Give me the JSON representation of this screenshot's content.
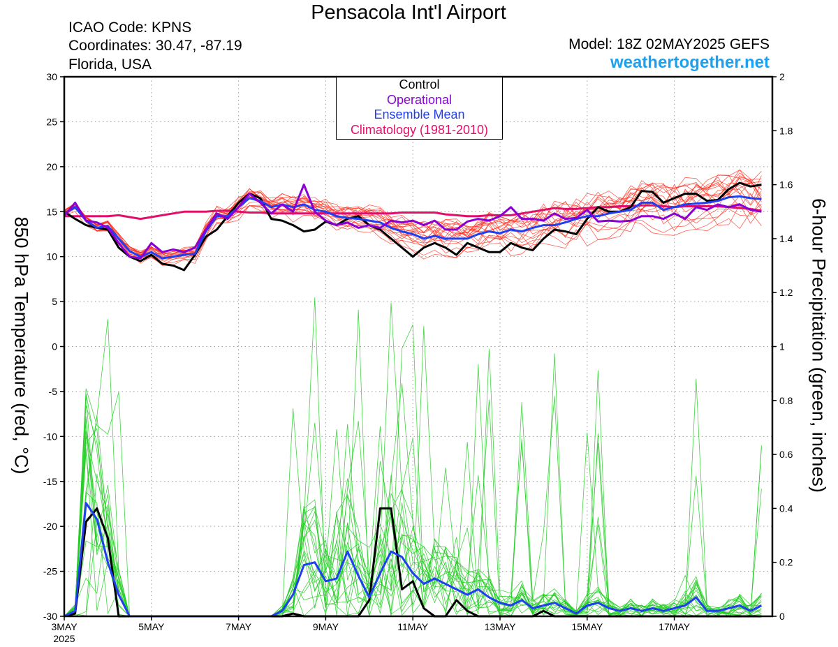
{
  "header": {
    "title": "Pensacola Int'l Airport",
    "icao": "ICAO Code: KPNS",
    "coordinates": "Coordinates: 30.47, -87.19",
    "region": "Florida, USA",
    "model": "Model: 18Z 02MAY2025 GEFS",
    "site": "weathertogether.net"
  },
  "legend": {
    "items": [
      {
        "label": "Control",
        "color": "#000000"
      },
      {
        "label": "Operational",
        "color": "#8a00d4"
      },
      {
        "label": "Ensemble Mean",
        "color": "#1f3ff0"
      },
      {
        "label": "Climatology (1981-2010)",
        "color": "#e0106a"
      }
    ]
  },
  "chart_data": {
    "type": "line",
    "title": "Pensacola Int'l Airport",
    "ylabel_left": "850 hPa Temperature (red, °C)",
    "ylabel_right": "6-hour Precipitation (green, inches)",
    "ylim_left": [
      -30,
      30
    ],
    "ylim_right": [
      0,
      2
    ],
    "yticks_left": [
      30,
      25,
      20,
      15,
      10,
      5,
      0,
      -5,
      -10,
      -15,
      -20,
      -25,
      -30
    ],
    "yticks_right": [
      "2",
      "1.8",
      "1.6",
      "1.4",
      "1.2",
      "1",
      "0.8",
      "0.6",
      "0.4",
      "0.2",
      "0"
    ],
    "x_start": "3MAY 2025 00Z",
    "x_interval_hours": 6,
    "x_range_hours": [
      0,
      390
    ],
    "xticks": [
      {
        "hours": 0,
        "label": "3MAY",
        "sublabel": "2025"
      },
      {
        "hours": 48,
        "label": "5MAY"
      },
      {
        "hours": 96,
        "label": "7MAY"
      },
      {
        "hours": 144,
        "label": "9MAY"
      },
      {
        "hours": 192,
        "label": "11MAY"
      },
      {
        "hours": 240,
        "label": "13MAY"
      },
      {
        "hours": 288,
        "label": "15MAY"
      },
      {
        "hours": 336,
        "label": "17MAY"
      }
    ],
    "grid": true,
    "legend_position": "top-center",
    "temperature_series": [
      {
        "name": "Control",
        "color": "#000000",
        "values": [
          15,
          14.2,
          13.5,
          13.2,
          13,
          11,
          10,
          9.5,
          10.2,
          9.2,
          9,
          8.5,
          10.2,
          12.2,
          13,
          14.5,
          16,
          17,
          16.5,
          14.2,
          14,
          13.5,
          12.8,
          13,
          13.9,
          13.5,
          14.2,
          14.5,
          13.5,
          13,
          12,
          11,
          10,
          11,
          11.5,
          11,
          10.2,
          11.5,
          11,
          10.5,
          10.5,
          11.5,
          11,
          10.7,
          12,
          13,
          12.8,
          12.5,
          14.2,
          15.5,
          15,
          15,
          15.5,
          17.3,
          17.2,
          16,
          16.5,
          17,
          17,
          16.2,
          16.3,
          17.5,
          18.2,
          17.8,
          18
        ]
      },
      {
        "name": "Operational",
        "color": "#8a00d4",
        "values": [
          14.5,
          16,
          14,
          13.8,
          13.2,
          11.5,
          10,
          9.8,
          11.5,
          10.5,
          10.8,
          10.5,
          11,
          13,
          14.8,
          14.2,
          15.5,
          17,
          16,
          14.8,
          15.8,
          15,
          18,
          15,
          14,
          13.5,
          13.8,
          13.2,
          13.5,
          13.2,
          14,
          13.8,
          14,
          13.5,
          14,
          13,
          13,
          13.9,
          14.2,
          14,
          14.5,
          15.5,
          14.2,
          14.2,
          14,
          14.8,
          14.2,
          14.3,
          15.2,
          13.9,
          14,
          13.9,
          14,
          14.5,
          14.5,
          14.2,
          14.8,
          14.2,
          15.5,
          15.2,
          15.8,
          15.5,
          15.8,
          15.2,
          15
        ]
      },
      {
        "name": "Ensemble Mean",
        "color": "#1f3ff0",
        "values": [
          14.8,
          15.5,
          14,
          13.2,
          13.4,
          12,
          10.6,
          10,
          10.5,
          9.8,
          10,
          10.2,
          10.3,
          12.8,
          14.5,
          14.5,
          15.5,
          16.5,
          16.2,
          15.5,
          15.8,
          15.5,
          15.8,
          15.2,
          15,
          14.5,
          14.3,
          14.2,
          14,
          13.8,
          13.2,
          12.8,
          12.5,
          12,
          12.3,
          12,
          12,
          12,
          12.5,
          12.8,
          12.6,
          13,
          12.8,
          13.2,
          13.5,
          13.5,
          13.8,
          14.2,
          14.5,
          14.5,
          14.8,
          15,
          15.2,
          16,
          16,
          15.2,
          15.5,
          15.8,
          15.9,
          16,
          16.2,
          16.6,
          16.7,
          16.5,
          16.4
        ]
      },
      {
        "name": "Climatology (1981-2010)",
        "color": "#e0106a",
        "values": [
          14.5,
          14.5,
          14.5,
          14.5,
          14.5,
          14.6,
          14.4,
          14.2,
          14.4,
          14.6,
          14.8,
          15,
          15,
          15,
          15.1,
          15.1,
          15,
          14.9,
          14.9,
          14.8,
          14.8,
          14.8,
          14.8,
          14.8,
          14.8,
          14.8,
          14.8,
          14.8,
          14.8,
          14.8,
          14.8,
          14.9,
          14.9,
          14.9,
          14.9,
          14.7,
          14.6,
          14.5,
          14.5,
          14.6,
          14.6,
          14.6,
          14.8,
          15,
          15.2,
          15.4,
          15.3,
          15.3,
          15.4,
          15.5,
          15.5,
          15.6,
          15.6,
          15.7,
          15.7,
          15.6,
          15.5,
          15.6,
          15.6,
          15.6,
          15.6,
          15.5,
          15.4,
          15.3,
          15.1
        ]
      }
    ],
    "precipitation_series": [
      {
        "name": "Control",
        "color": "#000000",
        "values": [
          0,
          0.01,
          0.35,
          0.4,
          0.29,
          0,
          0,
          0,
          0,
          0,
          0,
          0,
          0,
          0,
          0,
          0,
          0,
          0,
          0,
          0,
          0,
          0.01,
          0,
          0,
          0,
          0,
          0,
          0,
          0.06,
          0.4,
          0.4,
          0.1,
          0.13,
          0.03,
          0,
          0,
          0.06,
          0.02,
          0,
          0,
          0,
          0,
          0,
          0,
          0.02,
          0,
          0,
          0,
          0,
          0,
          0,
          0,
          0,
          0,
          0,
          0,
          0,
          0,
          0,
          0,
          0,
          0,
          0,
          0,
          0
        ]
      },
      {
        "name": "Ensemble Mean",
        "color": "#1f3ff0",
        "values": [
          0,
          0.02,
          0.42,
          0.36,
          0.2,
          0.08,
          0,
          0,
          0,
          0,
          0,
          0,
          0,
          0,
          0,
          0,
          0,
          0,
          0,
          0,
          0.02,
          0.08,
          0.19,
          0.2,
          0.13,
          0.14,
          0.24,
          0.15,
          0.07,
          0.16,
          0.24,
          0.22,
          0.16,
          0.12,
          0.14,
          0.12,
          0.1,
          0.08,
          0.1,
          0.07,
          0.05,
          0.04,
          0.06,
          0.03,
          0.04,
          0.05,
          0.03,
          0.01,
          0.04,
          0.05,
          0.03,
          0.02,
          0.03,
          0.02,
          0.03,
          0.02,
          0.03,
          0.04,
          0.07,
          0.02,
          0.02,
          0.03,
          0.04,
          0.02,
          0.04
        ]
      }
    ]
  }
}
